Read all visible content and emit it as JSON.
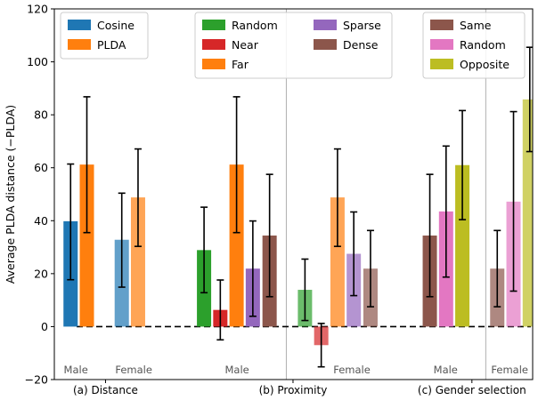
{
  "chart_data": {
    "type": "bar",
    "ylabel": "Average PLDA distance (−PLDA)",
    "ylim": [
      -20,
      120
    ],
    "yticks": [
      -20,
      0,
      20,
      40,
      60,
      80,
      100,
      120
    ],
    "xlim": [
      0,
      1
    ],
    "section_labels": [
      {
        "id": "distance",
        "text": "(a) Distance",
        "x": 0.107
      },
      {
        "id": "proximity",
        "text": "(b) Proximity",
        "x": 0.499
      },
      {
        "id": "gender",
        "text": "(c) Gender selection",
        "x": 0.873
      }
    ],
    "gender_labels": [
      {
        "id": "distance-male",
        "text": "Male",
        "x": 0.045
      },
      {
        "id": "distance-female",
        "text": "Female",
        "x": 0.166
      },
      {
        "id": "proximity-male",
        "text": "Male",
        "x": 0.382
      },
      {
        "id": "proximity-female",
        "text": "Female",
        "x": 0.622
      },
      {
        "id": "gender-male",
        "text": "Male",
        "x": 0.818
      },
      {
        "id": "gender-female",
        "text": "Female",
        "x": 0.952
      }
    ],
    "separators_x": [
      0.485,
      0.902
    ],
    "zero_line": true,
    "legends": [
      {
        "id": "distance",
        "position": "top-left",
        "entries": [
          {
            "label": "Cosine",
            "color": "#1f77b4"
          },
          {
            "label": "PLDA",
            "color": "#ff7f0e"
          }
        ]
      },
      {
        "id": "proximity",
        "position": "top-center",
        "columns": [
          [
            {
              "label": "Random",
              "color": "#2ca02c"
            },
            {
              "label": "Near",
              "color": "#d62728"
            },
            {
              "label": "Far",
              "color": "#ff7f0e"
            }
          ],
          [
            {
              "label": "Sparse",
              "color": "#9467bd"
            },
            {
              "label": "Dense",
              "color": "#8c564b"
            }
          ]
        ]
      },
      {
        "id": "gender",
        "position": "top-right",
        "entries": [
          {
            "label": "Same",
            "color": "#8c564b"
          },
          {
            "label": "Random",
            "color": "#e377c2"
          },
          {
            "label": "Opposite",
            "color": "#bcbd22"
          }
        ]
      }
    ],
    "series": [
      {
        "group": "(a) Distance",
        "gender": "Male",
        "method": "Cosine",
        "x": 0.034,
        "value": 39.8,
        "err_low": 17.7,
        "err_high": 61.4,
        "color": "#1f77b4",
        "alpha": 1.0
      },
      {
        "group": "(a) Distance",
        "gender": "Male",
        "method": "PLDA",
        "x": 0.068,
        "value": 61.2,
        "err_low": 35.5,
        "err_high": 86.8,
        "color": "#ff7f0e",
        "alpha": 1.0
      },
      {
        "group": "(a) Distance",
        "gender": "Female",
        "method": "Cosine",
        "x": 0.141,
        "value": 32.8,
        "err_low": 14.9,
        "err_high": 50.4,
        "color": "#1f77b4",
        "alpha": 0.7
      },
      {
        "group": "(a) Distance",
        "gender": "Female",
        "method": "PLDA",
        "x": 0.175,
        "value": 48.8,
        "err_low": 30.3,
        "err_high": 67.1,
        "color": "#ff7f0e",
        "alpha": 0.7
      },
      {
        "group": "(b) Proximity",
        "gender": "Male",
        "method": "Random",
        "x": 0.313,
        "value": 28.9,
        "err_low": 12.8,
        "err_high": 45.1,
        "color": "#2ca02c",
        "alpha": 1.0
      },
      {
        "group": "(b) Proximity",
        "gender": "Male",
        "method": "Near",
        "x": 0.347,
        "value": 6.3,
        "err_low": -5.0,
        "err_high": 17.6,
        "color": "#d62728",
        "alpha": 1.0
      },
      {
        "group": "(b) Proximity",
        "gender": "Male",
        "method": "Far",
        "x": 0.381,
        "value": 61.2,
        "err_low": 35.5,
        "err_high": 86.8,
        "color": "#ff7f0e",
        "alpha": 1.0
      },
      {
        "group": "(b) Proximity",
        "gender": "Male",
        "method": "Sparse",
        "x": 0.415,
        "value": 21.9,
        "err_low": 3.9,
        "err_high": 39.9,
        "color": "#9467bd",
        "alpha": 1.0
      },
      {
        "group": "(b) Proximity",
        "gender": "Male",
        "method": "Dense",
        "x": 0.45,
        "value": 34.4,
        "err_low": 11.3,
        "err_high": 57.5,
        "color": "#8c564b",
        "alpha": 1.0
      },
      {
        "group": "(b) Proximity",
        "gender": "Female",
        "method": "Random",
        "x": 0.524,
        "value": 13.9,
        "err_low": 2.3,
        "err_high": 25.5,
        "color": "#2ca02c",
        "alpha": 0.7
      },
      {
        "group": "(b) Proximity",
        "gender": "Female",
        "method": "Near",
        "x": 0.558,
        "value": -7.0,
        "err_low": -15.2,
        "err_high": 1.2,
        "color": "#d62728",
        "alpha": 0.7
      },
      {
        "group": "(b) Proximity",
        "gender": "Female",
        "method": "Far",
        "x": 0.592,
        "value": 48.8,
        "err_low": 30.3,
        "err_high": 67.1,
        "color": "#ff7f0e",
        "alpha": 0.7
      },
      {
        "group": "(b) Proximity",
        "gender": "Female",
        "method": "Sparse",
        "x": 0.626,
        "value": 27.5,
        "err_low": 11.7,
        "err_high": 43.3,
        "color": "#9467bd",
        "alpha": 0.7
      },
      {
        "group": "(b) Proximity",
        "gender": "Female",
        "method": "Dense",
        "x": 0.661,
        "value": 21.9,
        "err_low": 7.5,
        "err_high": 36.3,
        "color": "#8c564b",
        "alpha": 0.7
      },
      {
        "group": "(c) Gender selection",
        "gender": "Male",
        "method": "Same",
        "x": 0.785,
        "value": 34.4,
        "err_low": 11.3,
        "err_high": 57.5,
        "color": "#8c564b",
        "alpha": 1.0
      },
      {
        "group": "(c) Gender selection",
        "gender": "Male",
        "method": "Random",
        "x": 0.819,
        "value": 43.5,
        "err_low": 18.7,
        "err_high": 68.2,
        "color": "#e377c2",
        "alpha": 1.0
      },
      {
        "group": "(c) Gender selection",
        "gender": "Male",
        "method": "Opposite",
        "x": 0.853,
        "value": 61.0,
        "err_low": 40.4,
        "err_high": 81.6,
        "color": "#bcbd22",
        "alpha": 1.0
      },
      {
        "group": "(c) Gender selection",
        "gender": "Female",
        "method": "Same",
        "x": 0.926,
        "value": 21.9,
        "err_low": 7.5,
        "err_high": 36.3,
        "color": "#8c564b",
        "alpha": 0.7
      },
      {
        "group": "(c) Gender selection",
        "gender": "Female",
        "method": "Random",
        "x": 0.96,
        "value": 47.2,
        "err_low": 13.4,
        "err_high": 81.2,
        "color": "#e377c2",
        "alpha": 0.7
      },
      {
        "group": "(c) Gender selection",
        "gender": "Female",
        "method": "Opposite",
        "x": 0.994,
        "value": 85.8,
        "err_low": 66.1,
        "err_high": 105.5,
        "color": "#bcbd22",
        "alpha": 0.7
      }
    ]
  }
}
